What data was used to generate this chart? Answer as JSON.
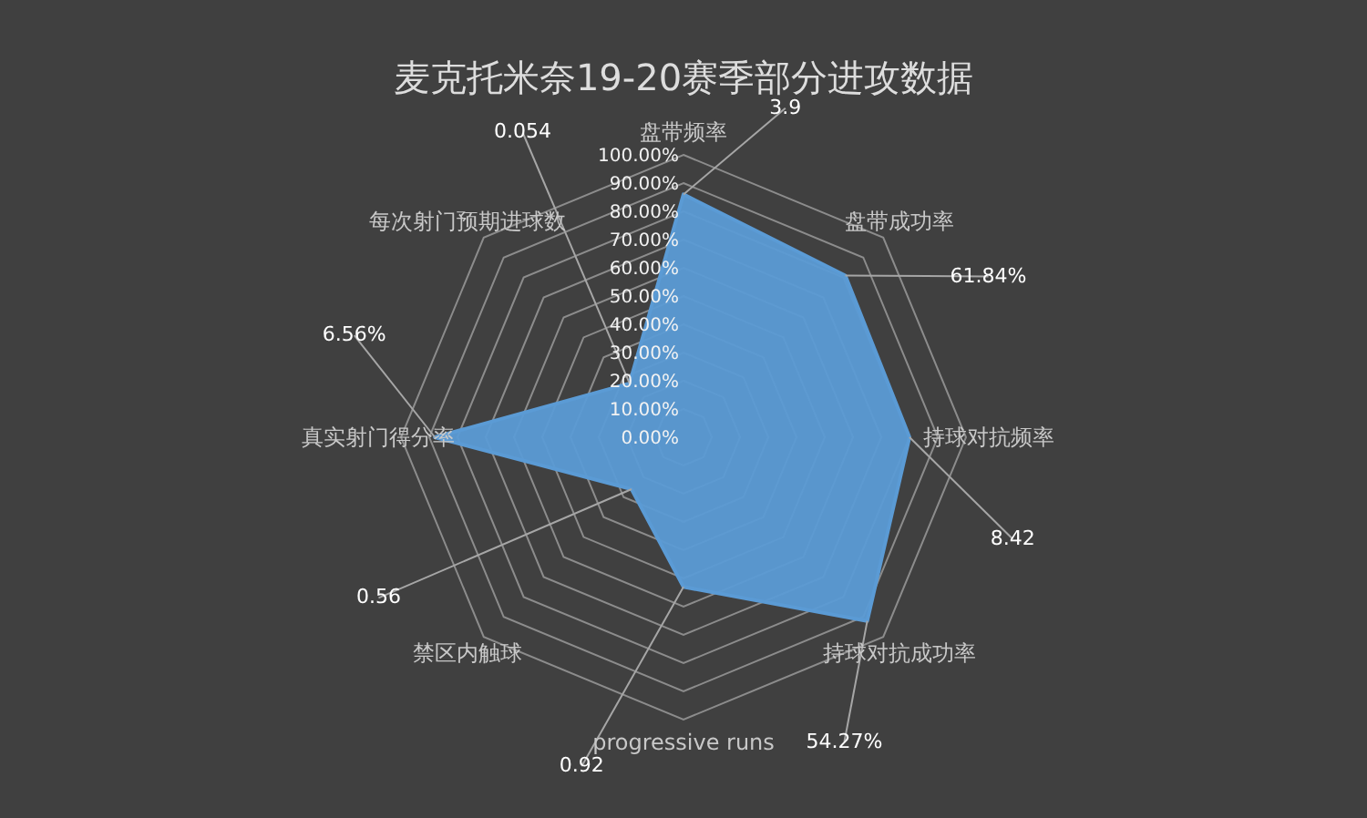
{
  "chart_data": {
    "type": "radar",
    "title": "麦克托米奈19-20赛季部分进攻数据",
    "categories": [
      "盘带频率",
      "盘带成功率",
      "持球对抗频率",
      "持球对抗成功率",
      "progressive runs",
      "禁区内触球",
      "真实射门得分率",
      "每次射门预期进球数"
    ],
    "series": [
      {
        "color": "#5b9bd5",
        "values": [
          86,
          81,
          80,
          92,
          53,
          26,
          88,
          27
        ]
      }
    ],
    "annotations": [
      {
        "text": "3.9",
        "x": "盘带频率"
      },
      {
        "text": "61.84%",
        "x": "盘带成功率"
      },
      {
        "text": "8.42",
        "x": "持球对抗频率"
      },
      {
        "text": "54.27%",
        "x": "持球对抗成功率"
      },
      {
        "text": "0.92",
        "x": "progressive runs"
      },
      {
        "text": "0.56",
        "x": "禁区内触球"
      },
      {
        "text": "6.56%",
        "x": "真实射门得分率"
      },
      {
        "text": "0.054",
        "x": "每次射门预期进球数"
      }
    ],
    "ylim": [
      0,
      100
    ],
    "yticks": [
      {
        "value": 0,
        "label": "0.00%"
      },
      {
        "value": 10,
        "label": "10.00%"
      },
      {
        "value": 20,
        "label": "20.00%"
      },
      {
        "value": 30,
        "label": "30.00%"
      },
      {
        "value": 40,
        "label": "40.00%"
      },
      {
        "value": 50,
        "label": "50.00%"
      },
      {
        "value": 60,
        "label": "60.00%"
      },
      {
        "value": 70,
        "label": "70.00%"
      },
      {
        "value": 80,
        "label": "80.00%"
      },
      {
        "value": 90,
        "label": "90.00%"
      },
      {
        "value": 100,
        "label": "100.00%"
      }
    ],
    "grid": true
  }
}
